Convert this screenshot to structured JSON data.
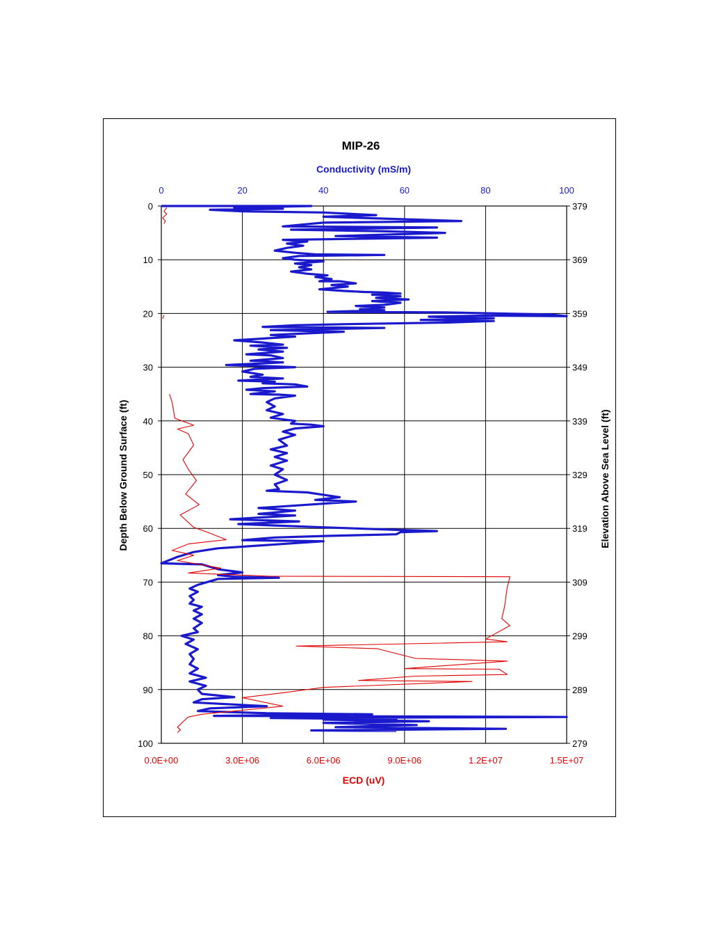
{
  "chart_data": {
    "type": "line",
    "title": "MIP-26",
    "top_axis": {
      "label": "Conductivity (mS/m)",
      "range": [
        0,
        100
      ],
      "ticks": [
        "0",
        "20",
        "40",
        "60",
        "80",
        "100"
      ],
      "color": "#1a1acc"
    },
    "bottom_axis": {
      "label": "ECD (uV)",
      "range": [
        0,
        15000000
      ],
      "ticks": [
        "0.0E+00",
        "3.0E+06",
        "6.0E+06",
        "9.0E+06",
        "1.2E+07",
        "1.5E+07"
      ],
      "color": "#e00000"
    },
    "left_axis": {
      "label": "Depth Below Ground Surface (ft)",
      "range": [
        0,
        100
      ],
      "inverted": true,
      "ticks": [
        "0",
        "10",
        "20",
        "30",
        "40",
        "50",
        "60",
        "70",
        "80",
        "90",
        "100"
      ]
    },
    "right_axis": {
      "label": "Elevation Above Sea Level (ft)",
      "range": [
        379,
        279
      ],
      "ticks": [
        "379",
        "369",
        "359",
        "349",
        "339",
        "329",
        "319",
        "309",
        "299",
        "289",
        "279"
      ]
    },
    "grid": true,
    "series": [
      {
        "axis": "conductivity",
        "color": "#1a1acc",
        "points": [
          [
            0,
            0
          ],
          [
            37,
            0
          ],
          [
            18,
            0.3
          ],
          [
            30,
            0.5
          ],
          [
            12,
            0.7
          ],
          [
            20,
            1
          ],
          [
            40,
            1.2
          ],
          [
            53,
            1.7
          ],
          [
            40,
            2
          ],
          [
            74,
            2.8
          ],
          [
            40,
            3.1
          ],
          [
            30,
            3.8
          ],
          [
            68,
            4
          ],
          [
            32,
            4.4
          ],
          [
            55,
            4.7
          ],
          [
            70,
            5
          ],
          [
            43,
            5.6
          ],
          [
            68,
            5.9
          ],
          [
            30,
            6.3
          ],
          [
            36,
            6.6
          ],
          [
            31,
            7
          ],
          [
            35,
            7.4
          ],
          [
            31,
            7.8
          ],
          [
            28,
            8.3
          ],
          [
            33,
            8.7
          ],
          [
            38,
            9
          ],
          [
            55,
            9.1
          ],
          [
            34,
            9.3
          ],
          [
            30,
            9.7
          ],
          [
            33,
            10
          ],
          [
            40,
            10.3
          ],
          [
            33,
            10.7
          ],
          [
            37,
            11
          ],
          [
            34,
            11.4
          ],
          [
            37,
            11.8
          ],
          [
            32,
            12.2
          ],
          [
            36,
            12.6
          ],
          [
            41,
            12.9
          ],
          [
            38,
            13.2
          ],
          [
            42,
            13.6
          ],
          [
            39,
            14
          ],
          [
            44,
            14
          ],
          [
            48,
            14.4
          ],
          [
            42,
            14.7
          ],
          [
            46,
            15
          ],
          [
            39,
            15.5
          ],
          [
            45,
            15.8
          ],
          [
            50,
            16
          ],
          [
            55,
            16.1
          ],
          [
            59,
            16.3
          ],
          [
            52,
            16.5
          ],
          [
            59,
            16.8
          ],
          [
            53,
            17.1
          ],
          [
            61,
            17.4
          ],
          [
            52,
            17.7
          ],
          [
            59,
            18
          ],
          [
            55,
            18.4
          ],
          [
            48,
            18.6
          ],
          [
            55,
            18.9
          ],
          [
            49,
            19.2
          ],
          [
            55,
            19.4
          ],
          [
            41,
            19.7
          ],
          [
            70,
            19.8
          ],
          [
            96,
            20.2
          ],
          [
            100,
            20.5
          ],
          [
            80,
            20.4
          ],
          [
            66,
            20.6
          ],
          [
            82,
            20.9
          ],
          [
            64,
            21.2
          ],
          [
            82,
            21.4
          ],
          [
            70,
            21.7
          ],
          [
            45,
            22
          ],
          [
            33,
            22.2
          ],
          [
            25,
            22.5
          ],
          [
            55,
            22.7
          ],
          [
            27,
            23.1
          ],
          [
            45,
            23.4
          ],
          [
            27,
            24
          ],
          [
            33,
            24.3
          ],
          [
            18,
            25
          ],
          [
            25,
            25.4
          ],
          [
            30,
            25.8
          ],
          [
            22,
            26
          ],
          [
            31,
            26.4
          ],
          [
            24,
            26.7
          ],
          [
            30,
            27.1
          ],
          [
            21,
            27.6
          ],
          [
            27,
            27.8
          ],
          [
            30,
            28.3
          ],
          [
            22,
            28.8
          ],
          [
            30,
            29.1
          ],
          [
            16,
            29.6
          ],
          [
            26,
            29.8
          ],
          [
            33,
            30
          ],
          [
            23,
            30.3
          ],
          [
            20,
            30.8
          ],
          [
            25,
            31.4
          ],
          [
            22,
            31.8
          ],
          [
            30,
            32.1
          ],
          [
            19,
            32.5
          ],
          [
            28,
            32.7
          ],
          [
            25,
            33
          ],
          [
            33,
            33.2
          ],
          [
            36,
            33.6
          ],
          [
            25,
            33.9
          ],
          [
            21,
            34.2
          ],
          [
            28,
            34.5
          ],
          [
            22,
            35
          ],
          [
            29,
            35.1
          ],
          [
            33,
            35.3
          ],
          [
            28,
            35.8
          ],
          [
            26,
            36.5
          ],
          [
            28,
            37.3
          ],
          [
            26,
            38
          ],
          [
            30,
            38.7
          ],
          [
            27,
            39.4
          ],
          [
            33,
            40
          ],
          [
            32,
            40.5
          ],
          [
            37,
            40.7
          ],
          [
            40,
            41
          ],
          [
            33,
            41.4
          ],
          [
            30,
            42
          ],
          [
            33,
            42.6
          ],
          [
            29,
            43.5
          ],
          [
            31,
            44.6
          ],
          [
            27,
            45.3
          ],
          [
            31,
            46
          ],
          [
            28,
            46.7
          ],
          [
            31,
            47.4
          ],
          [
            27,
            48.3
          ],
          [
            30,
            49
          ],
          [
            28,
            50
          ],
          [
            31,
            51
          ],
          [
            28,
            51.8
          ],
          [
            29,
            52.7
          ],
          [
            26,
            53
          ],
          [
            36,
            53.3
          ],
          [
            44,
            54.2
          ],
          [
            38,
            54.7
          ],
          [
            48,
            55
          ],
          [
            40,
            55.4
          ],
          [
            32,
            55.8
          ],
          [
            24,
            56.2
          ],
          [
            33,
            56.7
          ],
          [
            24,
            57.3
          ],
          [
            33,
            57.6
          ],
          [
            17,
            58.3
          ],
          [
            34,
            58.7
          ],
          [
            19,
            59.2
          ],
          [
            40,
            59.8
          ],
          [
            59,
            60.3
          ],
          [
            68,
            60.5
          ],
          [
            59,
            60.7
          ],
          [
            58,
            61.1
          ],
          [
            41,
            61.4
          ],
          [
            28,
            61.7
          ],
          [
            20,
            62.2
          ],
          [
            40,
            62.4
          ],
          [
            14,
            63.7
          ],
          [
            8,
            64.4
          ],
          [
            4,
            65.3
          ],
          [
            0,
            66.5
          ],
          [
            10,
            66.7
          ],
          [
            14,
            67.6
          ],
          [
            20,
            68.2
          ],
          [
            14,
            68.7
          ],
          [
            18,
            69
          ],
          [
            29,
            69.2
          ],
          [
            14,
            69.4
          ],
          [
            9,
            70.5
          ],
          [
            7,
            71.2
          ],
          [
            9,
            71.8
          ],
          [
            7,
            72.6
          ],
          [
            8,
            73.3
          ],
          [
            7,
            74
          ],
          [
            10,
            74.6
          ],
          [
            8,
            75.3
          ],
          [
            10,
            76
          ],
          [
            8,
            76.8
          ],
          [
            10,
            77.6
          ],
          [
            8,
            78.6
          ],
          [
            9,
            79.3
          ],
          [
            5,
            80
          ],
          [
            8,
            80.7
          ],
          [
            6,
            81.5
          ],
          [
            9,
            82.5
          ],
          [
            7,
            83.4
          ],
          [
            8,
            84.3
          ],
          [
            7,
            85.3
          ],
          [
            9,
            86.1
          ],
          [
            7,
            87
          ],
          [
            11,
            87.8
          ],
          [
            7,
            88.5
          ],
          [
            11,
            89.3
          ],
          [
            9,
            90
          ],
          [
            10,
            90.8
          ],
          [
            18,
            91.4
          ],
          [
            10,
            91.8
          ],
          [
            8,
            92.4
          ],
          [
            26,
            93.1
          ],
          [
            12,
            93.5
          ],
          [
            9,
            94
          ],
          [
            26,
            94.4
          ],
          [
            52,
            94.6
          ],
          [
            13,
            94.9
          ],
          [
            100,
            95.1
          ],
          [
            27,
            95.3
          ],
          [
            58,
            95.5
          ],
          [
            40,
            95.6
          ],
          [
            66,
            95.9
          ],
          [
            40,
            96.2
          ],
          [
            63,
            96.6
          ],
          [
            43,
            97
          ],
          [
            85,
            97.3
          ],
          [
            37,
            97.6
          ],
          [
            58,
            97.7
          ]
        ]
      },
      {
        "axis": "ecd",
        "color": "#e00000",
        "points": [
          [
            200000,
            0.3
          ],
          [
            100000,
            1
          ],
          [
            200000,
            1.5
          ],
          [
            50000,
            2.2
          ],
          [
            150000,
            2.8
          ],
          [
            100000,
            3.3
          ],
          [
            null,
            null
          ],
          [
            100000,
            20.3
          ],
          [
            50000,
            21
          ],
          [
            null,
            null
          ],
          [
            300000,
            35
          ],
          [
            400000,
            36.5
          ],
          [
            450000,
            38
          ],
          [
            500000,
            39.5
          ],
          [
            1200000,
            40.8
          ],
          [
            600000,
            41.5
          ],
          [
            1000000,
            42.4
          ],
          [
            1200000,
            44.5
          ],
          [
            800000,
            47.2
          ],
          [
            1000000,
            49
          ],
          [
            1300000,
            51.1
          ],
          [
            900000,
            53.6
          ],
          [
            1400000,
            55.6
          ],
          [
            700000,
            57.5
          ],
          [
            1200000,
            59.8
          ],
          [
            1700000,
            60.7
          ],
          [
            2400000,
            62.1
          ],
          [
            1000000,
            62.9
          ],
          [
            400000,
            64.1
          ],
          [
            1200000,
            65
          ],
          [
            600000,
            66
          ],
          [
            2200000,
            67.4
          ],
          [
            1000000,
            68.3
          ],
          [
            4000000,
            68.9
          ],
          [
            12900000,
            69
          ],
          [
            12800000,
            71
          ],
          [
            12700000,
            74.6
          ],
          [
            12600000,
            76.8
          ],
          [
            12900000,
            78.1
          ],
          [
            12000000,
            80.6
          ],
          [
            12800000,
            81.1
          ],
          [
            5000000,
            81.9
          ],
          [
            8000000,
            82.4
          ],
          [
            9400000,
            84.2
          ],
          [
            12800000,
            84.7
          ],
          [
            9000000,
            86.1
          ],
          [
            12500000,
            86.2
          ],
          [
            12800000,
            87.2
          ],
          [
            9400000,
            87.5
          ],
          [
            7300000,
            88.3
          ],
          [
            11500000,
            88.5
          ],
          [
            6000000,
            89.6
          ],
          [
            4500000,
            90.6
          ],
          [
            3000000,
            91.5
          ],
          [
            4500000,
            93.1
          ],
          [
            1500000,
            94.6
          ],
          [
            1000000,
            95.1
          ],
          [
            800000,
            96
          ],
          [
            600000,
            97
          ],
          [
            700000,
            97.5
          ],
          [
            600000,
            98
          ]
        ]
      }
    ]
  }
}
